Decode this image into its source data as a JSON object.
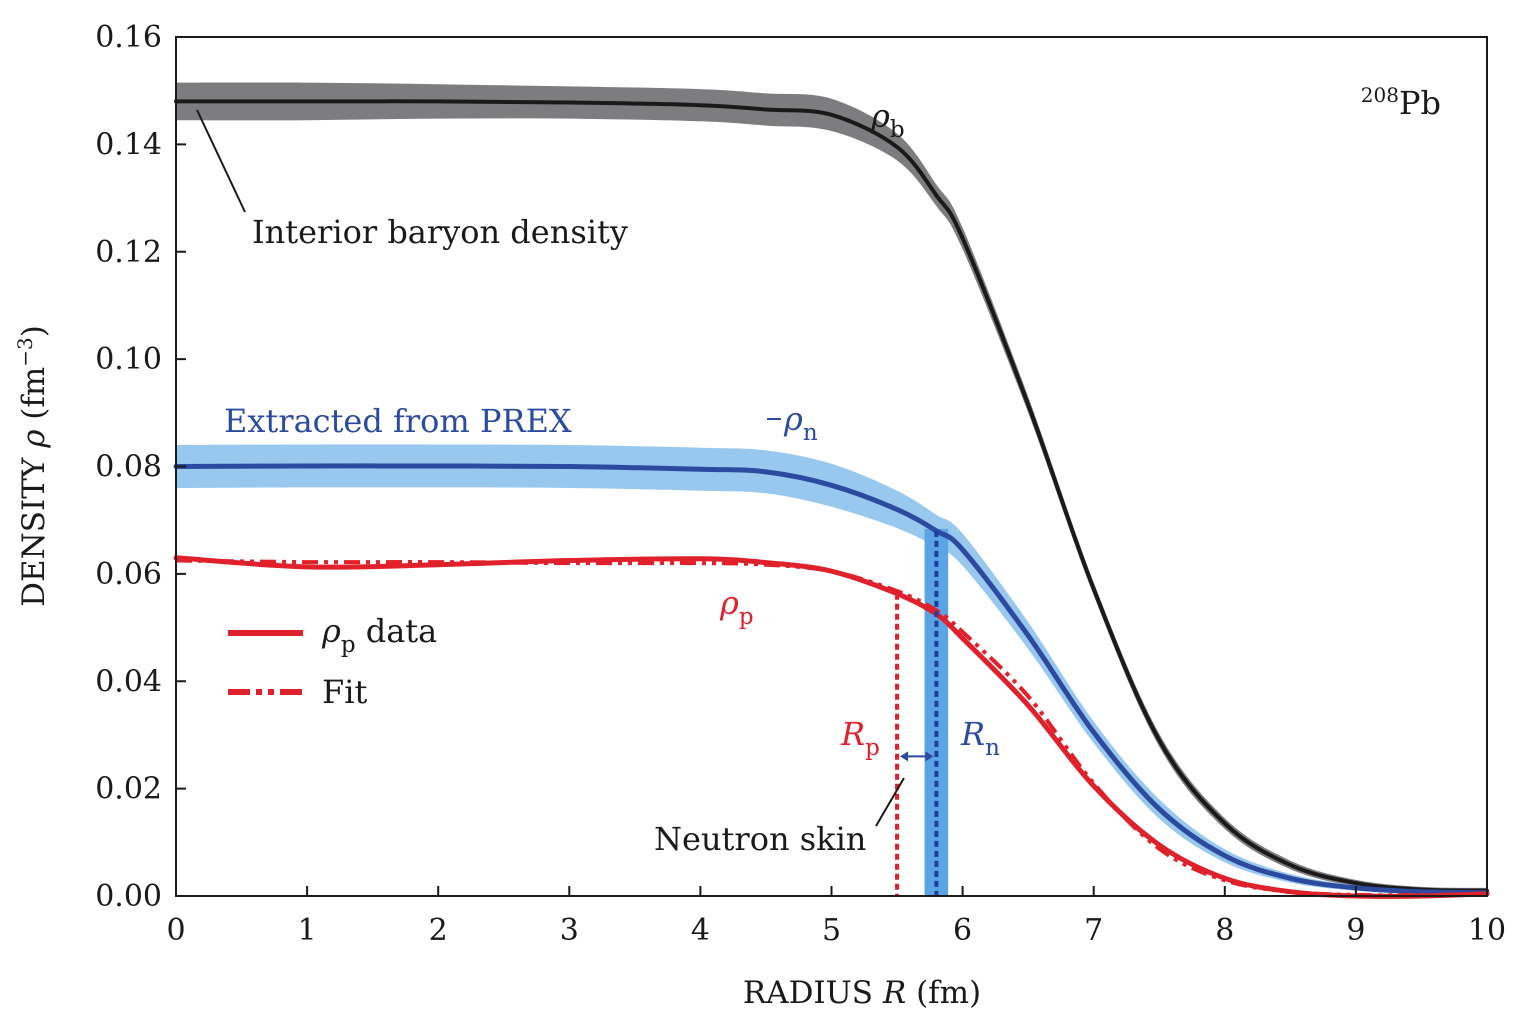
{
  "chart_data": {
    "type": "line",
    "xlabel": {
      "prefix": "RADIUS ",
      "var": "R",
      "suffix": " (fm)"
    },
    "ylabel": {
      "prefix": "DENSITY ",
      "var": "ρ",
      "unit_open": " (fm",
      "unit_exp": "−3",
      "unit_close": ")"
    },
    "xlim": [
      0,
      10
    ],
    "ylim": [
      0,
      0.16
    ],
    "x_ticks": [
      0,
      1,
      2,
      3,
      4,
      5,
      6,
      7,
      8,
      9,
      10
    ],
    "x_tick_labels": [
      "0",
      "1",
      "2",
      "3",
      "4",
      "5",
      "6",
      "7",
      "8",
      "9",
      "10"
    ],
    "y_ticks": [
      0,
      0.02,
      0.04,
      0.06,
      0.08,
      0.1,
      0.12,
      0.14,
      0.16
    ],
    "y_tick_labels": [
      "0.00",
      "0.02",
      "0.04",
      "0.06",
      "0.08",
      "0.10",
      "0.12",
      "0.14",
      "0.16"
    ],
    "grid": false,
    "x": [
      0,
      1,
      2,
      3,
      4,
      4.5,
      5,
      5.5,
      5.8,
      6,
      6.5,
      7,
      7.5,
      8,
      8.5,
      9,
      9.5,
      10
    ],
    "series": [
      {
        "name": "ρb",
        "label": "ρ",
        "label_sub": "b",
        "color": "#1a1a1a",
        "band_color": "#7d7d80",
        "values": [
          0.148,
          0.148,
          0.148,
          0.1478,
          0.1473,
          0.1465,
          0.1455,
          0.1395,
          0.1305,
          0.1225,
          0.0915,
          0.0572,
          0.029,
          0.0135,
          0.0058,
          0.0024,
          0.0012,
          0.001
        ],
        "band": [
          0.0035,
          0.0035,
          0.0032,
          0.003,
          0.003,
          0.003,
          0.003,
          0.0025,
          0.002,
          0.002,
          0.0015,
          0.0012,
          0.0012,
          0.001,
          0.0008,
          0.0006,
          0.0005,
          0.0005
        ]
      },
      {
        "name": "ρn",
        "label": "ρ",
        "label_sub": "n",
        "color": "#2b4aa0",
        "band_color": "#99c8ee",
        "values": [
          0.08,
          0.0801,
          0.0801,
          0.08,
          0.0795,
          0.079,
          0.0765,
          0.072,
          0.068,
          0.0645,
          0.0485,
          0.0305,
          0.0162,
          0.0075,
          0.0033,
          0.0015,
          0.0008,
          0.0006
        ],
        "band": [
          0.004,
          0.004,
          0.004,
          0.004,
          0.004,
          0.004,
          0.004,
          0.0035,
          0.003,
          0.003,
          0.0025,
          0.002,
          0.0018,
          0.0012,
          0.0008,
          0.0005,
          0.0004,
          0.0003
        ]
      },
      {
        "name": "ρp data",
        "label": "ρ",
        "label_sub": "p",
        "color": "#e0202a",
        "values": [
          0.063,
          0.0613,
          0.0617,
          0.0625,
          0.0628,
          0.0621,
          0.0605,
          0.0563,
          0.0525,
          0.048,
          0.0355,
          0.0205,
          0.0095,
          0.0033,
          0.0008,
          0.0,
          0.0,
          0.0004
        ]
      },
      {
        "name": "Fit",
        "color": "#e0202a",
        "dash": "16,6,4,6,4,6",
        "values": [
          0.0625,
          0.0622,
          0.0622,
          0.062,
          0.062,
          0.0617,
          0.0605,
          0.0568,
          0.0532,
          0.0492,
          0.0372,
          0.021,
          0.0088,
          0.0029,
          0.0008,
          0.0002,
          0.0002,
          0.0003
        ]
      }
    ],
    "markers": {
      "R_p": 5.5,
      "R_n": 5.8,
      "R_n_band": [
        5.71,
        5.89
      ]
    },
    "legend": {
      "position": "center-left",
      "items": [
        {
          "label_sym": "ρ",
          "label_sub": "p",
          "label_rest": " data",
          "style": "solid",
          "color": "#e0202a"
        },
        {
          "label_rest": "Fit",
          "style": "dashdotdot",
          "color": "#e0202a"
        }
      ]
    },
    "annotations": {
      "nucleus": {
        "sup": "208",
        "main": "Pb"
      },
      "interior": "Interior baryon density",
      "prex": "Extracted from PREX",
      "neutron_skin": "Neutron skin",
      "rp": {
        "main": "R",
        "sub": "p"
      },
      "rn": {
        "main": "R",
        "sub": "n"
      }
    }
  }
}
